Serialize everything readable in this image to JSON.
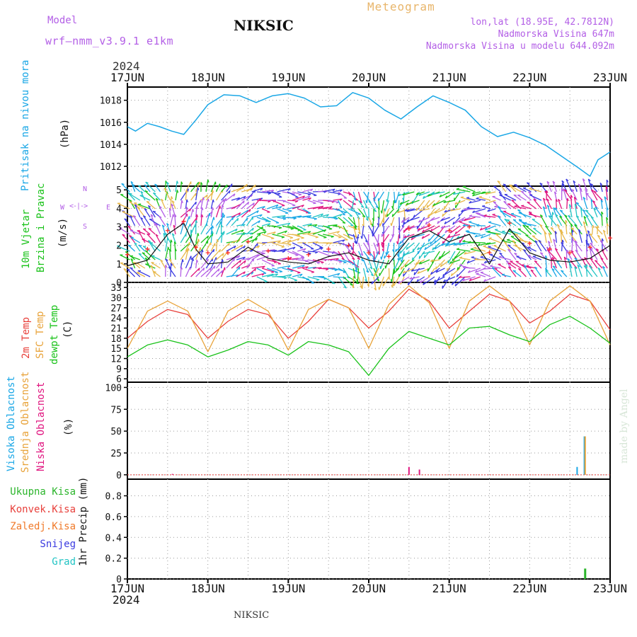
{
  "header": {
    "model_label": "Model",
    "model_value": "wrf—nmm_v3.9.1  e1km",
    "station": "NIKSIC",
    "meteogram": "Meteogram",
    "lonlat": "lon,lat (18.95E, 42.7812N)",
    "elevation": "Nadmorska Visina 647m",
    "model_elevation": "Nadmorska Visina u modelu 644.092m",
    "year_top": "2024",
    "year_bottom": "2024",
    "footer_station": "NIKSIC",
    "watermark": "made by Angel"
  },
  "compass": {
    "n": "N",
    "s": "S",
    "w": "W",
    "e": "E"
  },
  "colors": {
    "pressure": "#1aa7e6",
    "wind_speed": "#111111",
    "wind_gust": "#ff2a2a",
    "temp_2m": "#e8413c",
    "temp_sfc": "#e8a33a",
    "dewpoint": "#19c219",
    "cloud_high": "#1aa7e6",
    "cloud_mid": "#e8a33a",
    "cloud_low": "#e0157f",
    "precip_total": "#2bb52b",
    "precip_conv": "#e8413c",
    "precip_frozen": "#f07a2a",
    "snow": "#3a3ae0",
    "hail": "#22c4c4"
  },
  "chart_data": [
    {
      "type": "line",
      "panel": "pressure",
      "ylabel": [
        "Pritisak na nivou mora",
        "(hPa)"
      ],
      "x_ticks": [
        "17JUN",
        "18JUN",
        "19JUN",
        "20JUN",
        "21JUN",
        "22JUN",
        "23JUN"
      ],
      "y_ticks": [
        1012,
        1014,
        1016,
        1018
      ],
      "ylim": [
        1010.2,
        1019.2
      ],
      "x_days": [
        0,
        0.1,
        0.25,
        0.4,
        0.55,
        0.7,
        0.85,
        1.0,
        1.2,
        1.4,
        1.6,
        1.8,
        2.0,
        2.2,
        2.4,
        2.6,
        2.8,
        3.0,
        3.2,
        3.4,
        3.6,
        3.8,
        4.0,
        4.2,
        4.4,
        4.6,
        4.8,
        5.0,
        5.2,
        5.4,
        5.6,
        5.75,
        5.85,
        6.0
      ],
      "values": [
        1015.6,
        1015.2,
        1015.9,
        1015.6,
        1015.2,
        1014.9,
        1016.2,
        1017.6,
        1018.5,
        1018.4,
        1017.8,
        1018.4,
        1018.6,
        1018.2,
        1017.4,
        1017.5,
        1018.7,
        1018.2,
        1017.1,
        1016.3,
        1017.4,
        1018.4,
        1017.8,
        1017.1,
        1015.6,
        1014.7,
        1015.1,
        1014.6,
        1013.9,
        1012.9,
        1011.9,
        1011.1,
        1012.6,
        1013.3
      ],
      "grid": true
    },
    {
      "type": "line",
      "panel": "wind",
      "ylabel": [
        "10m Vjetar",
        "Brzina i Pravac",
        "(m/s)"
      ],
      "y_ticks": [
        0,
        1,
        2,
        3,
        4,
        5
      ],
      "ylim": [
        0,
        5.2
      ],
      "x_days": [
        0,
        0.25,
        0.5,
        0.7,
        0.85,
        1.0,
        1.25,
        1.5,
        1.75,
        2.0,
        2.25,
        2.5,
        2.75,
        3.0,
        3.25,
        3.5,
        3.75,
        4.0,
        4.25,
        4.5,
        4.75,
        5.0,
        5.25,
        5.5,
        5.75,
        6.0
      ],
      "series": [
        {
          "name": "speed",
          "values": [
            0.9,
            1.2,
            2.6,
            3.2,
            1.8,
            1.0,
            1.1,
            1.9,
            1.3,
            1.1,
            1.0,
            1.4,
            1.6,
            1.2,
            1.0,
            2.4,
            2.8,
            2.2,
            2.6,
            1.0,
            2.9,
            1.6,
            1.2,
            1.1,
            1.3,
            2.0
          ]
        },
        {
          "name": "gust",
          "values": [
            1.5,
            1.8,
            2.8,
            3.3,
            1.9,
            1.6,
            1.6,
            2.2,
            1.7,
            1.3,
            1.5,
            1.8,
            2.0,
            1.6,
            1.4,
            2.9,
            3.1,
            2.8,
            3.0,
            1.6,
            3.2,
            2.1,
            1.8,
            1.6,
            1.9,
            2.4
          ]
        }
      ],
      "grid": true
    },
    {
      "type": "line",
      "panel": "temperature",
      "ylabel": [
        "2m Temp",
        "SFC Temp",
        "dewpt Temp",
        "(C)"
      ],
      "y_ticks": [
        6,
        9,
        12,
        15,
        18,
        21,
        24,
        27,
        30,
        33
      ],
      "ylim": [
        5,
        34.5
      ],
      "x_days": [
        0,
        0.25,
        0.5,
        0.75,
        1.0,
        1.25,
        1.5,
        1.75,
        2.0,
        2.25,
        2.5,
        2.75,
        3.0,
        3.25,
        3.5,
        3.75,
        4.0,
        4.25,
        4.5,
        4.75,
        5.0,
        5.25,
        5.5,
        5.75,
        6.0
      ],
      "series": [
        {
          "name": "2m Temp",
          "values": [
            18,
            23,
            26.5,
            25,
            18,
            23,
            26.5,
            25,
            18,
            23,
            29.5,
            27,
            21,
            26,
            32.5,
            29,
            21,
            26,
            31,
            29,
            22.5,
            26,
            31,
            29,
            20.5
          ]
        },
        {
          "name": "SFC Temp",
          "values": [
            15,
            26,
            29,
            26,
            14,
            26,
            29.5,
            26,
            14.5,
            26.5,
            29.5,
            27,
            15,
            28,
            33.5,
            28.5,
            15,
            29,
            33.5,
            29,
            16,
            29,
            33.5,
            29,
            16
          ]
        },
        {
          "name": "dewpt Temp",
          "values": [
            12.5,
            16,
            17.5,
            16,
            12.5,
            14.5,
            17,
            16,
            13,
            17,
            16,
            14,
            7,
            15,
            20,
            18,
            16,
            21,
            21.5,
            19,
            17,
            22,
            24.5,
            21,
            16.5
          ]
        }
      ],
      "grid": true
    },
    {
      "type": "bar",
      "panel": "cloud",
      "ylabel": [
        "Visoka Oblacnost",
        "Srednja Oblacnost",
        "Niska Oblacnost",
        "(%)"
      ],
      "y_ticks": [
        0,
        25,
        50,
        75,
        100
      ],
      "ylim": [
        -5,
        106
      ],
      "series": [
        {
          "name": "Visoka Oblacnost",
          "x_days": [
            5.59,
            5.68
          ],
          "values": [
            9,
            44
          ]
        },
        {
          "name": "Srednja Oblacnost",
          "x_days": [
            5.69
          ],
          "values": [
            44
          ]
        },
        {
          "name": "Niska Oblacnost",
          "x_days": [
            0.56,
            3.5,
            3.63
          ],
          "values": [
            1,
            9,
            6
          ]
        }
      ],
      "grid": true
    },
    {
      "type": "bar",
      "panel": "precip",
      "ylabel": [
        "1hr Precip (mm)"
      ],
      "legend": [
        "Ukupna Kisa",
        "Konvek.Kisa",
        "Zaledj.Kisa",
        "Snijeg",
        "Grad"
      ],
      "y_ticks": [
        0,
        0.2,
        0.4,
        0.6,
        0.8
      ],
      "ylim": [
        0,
        0.96
      ],
      "series": [
        {
          "name": "Ukupna Kisa",
          "x_days": [
            5.69
          ],
          "values": [
            0.1
          ]
        }
      ],
      "grid": true
    }
  ]
}
